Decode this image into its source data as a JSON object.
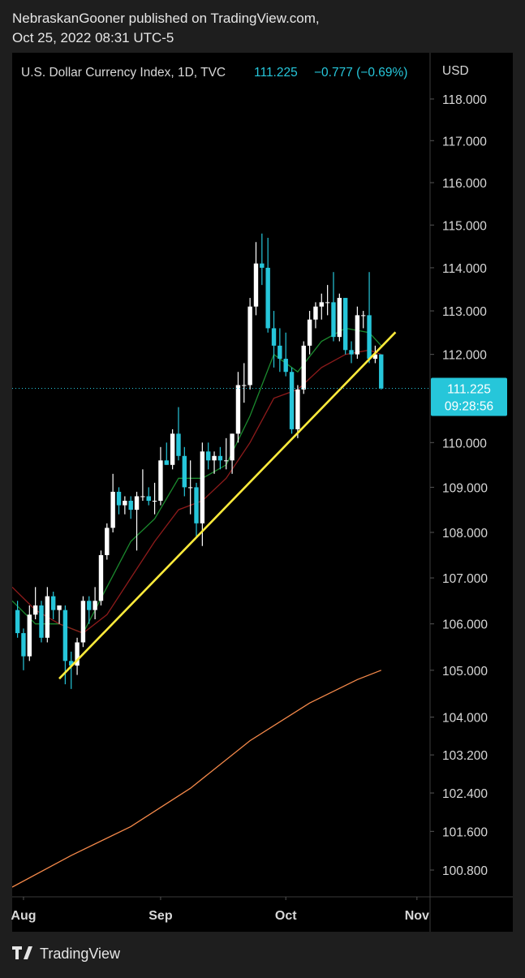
{
  "header": {
    "publisher": "NebraskanGooner published on TradingView.com,",
    "date": "Oct 25, 2022 08:31 UTC-5"
  },
  "chart_data": {
    "type": "candlestick",
    "title": "U.S. Dollar Currency Index, 1D, TVC",
    "last": 111.225,
    "change": "−0.777 (−0.69%)",
    "countdown": "09:28:56",
    "currency": "USD",
    "log": true,
    "up_color": "#ffffff",
    "down_color": "#26c6da",
    "x": [
      -1,
      0,
      1,
      2,
      3,
      4,
      5,
      6,
      7,
      8,
      9,
      10,
      11,
      12,
      13,
      14,
      15,
      16,
      17,
      18,
      19,
      20,
      21,
      22,
      23,
      24,
      25,
      26,
      27,
      28,
      29,
      30,
      31,
      32,
      33,
      34,
      35,
      36,
      37,
      38,
      39,
      40,
      41,
      42,
      43,
      44,
      45,
      46,
      47,
      48,
      49,
      50,
      51,
      52,
      53,
      54,
      55,
      56,
      57,
      58,
      59,
      60
    ],
    "open": [
      106.3,
      105.8,
      105.3,
      106.2,
      106.4,
      105.7,
      106.6,
      106.3,
      106.3,
      105.2,
      105.1,
      105.6,
      106.5,
      106.3,
      106.5,
      107.5,
      108.1,
      108.9,
      108.6,
      108.7,
      108.5,
      108.8,
      108.8,
      108.7,
      108.7,
      109.6,
      109.5,
      110.2,
      109.7,
      109.0,
      109.0,
      108.2,
      109.8,
      109.6,
      109.7,
      109.6,
      109.6,
      110.2,
      111.3,
      111.3,
      113.1,
      114.1,
      114.0,
      112.6,
      112.2,
      111.9,
      111.6,
      110.3,
      111.2,
      112.2,
      112.8,
      113.1,
      113.2,
      113.2,
      112.4,
      113.3,
      112.1,
      112.0,
      112.9,
      112.9,
      111.9,
      112.0
    ],
    "high": [
      106.5,
      105.9,
      106.4,
      106.8,
      106.5,
      106.8,
      106.7,
      106.4,
      106.4,
      105.4,
      105.7,
      106.6,
      106.6,
      106.8,
      107.6,
      108.2,
      109.3,
      109.0,
      108.8,
      108.8,
      108.9,
      109.4,
      109.0,
      109.1,
      109.9,
      110.0,
      110.3,
      110.8,
      109.9,
      109.6,
      109.1,
      110.0,
      110.0,
      109.8,
      109.9,
      110.1,
      110.2,
      111.6,
      111.8,
      113.3,
      114.6,
      114.8,
      114.7,
      113.0,
      112.6,
      112.5,
      111.7,
      111.3,
      112.3,
      113.0,
      113.2,
      113.4,
      113.6,
      113.9,
      113.4,
      113.3,
      112.3,
      113.1,
      113.0,
      113.9,
      112.2,
      112.0
    ],
    "low": [
      105.7,
      105.0,
      105.2,
      106.1,
      105.6,
      105.6,
      106.1,
      106.0,
      104.7,
      104.6,
      104.9,
      105.5,
      106.0,
      106.1,
      106.4,
      107.4,
      108.0,
      108.4,
      108.4,
      108.3,
      107.6,
      108.7,
      108.6,
      108.4,
      108.6,
      109.5,
      109.4,
      109.6,
      108.8,
      108.4,
      107.9,
      107.7,
      109.4,
      109.3,
      109.4,
      109.4,
      109.3,
      110.0,
      110.9,
      111.2,
      112.9,
      113.6,
      112.5,
      111.7,
      111.6,
      111.5,
      110.2,
      110.1,
      111.1,
      112.0,
      112.6,
      112.8,
      112.9,
      112.3,
      112.3,
      112.0,
      111.8,
      111.9,
      112.6,
      111.8,
      111.8,
      111.2
    ],
    "close": [
      105.8,
      105.3,
      106.2,
      106.4,
      105.7,
      106.6,
      106.3,
      106.4,
      105.2,
      105.1,
      105.6,
      106.5,
      106.3,
      106.5,
      107.5,
      108.1,
      108.9,
      108.6,
      108.7,
      108.5,
      108.8,
      108.8,
      108.7,
      108.7,
      109.6,
      109.5,
      110.2,
      109.7,
      109.0,
      109.0,
      108.2,
      109.8,
      109.6,
      109.7,
      109.6,
      109.6,
      110.2,
      111.3,
      111.3,
      113.1,
      114.1,
      114.0,
      112.6,
      112.2,
      111.9,
      111.6,
      110.3,
      111.2,
      112.2,
      112.8,
      113.1,
      113.2,
      113.2,
      112.4,
      113.3,
      112.1,
      112.0,
      112.9,
      112.9,
      111.9,
      112.0,
      111.225
    ],
    "lines": [
      {
        "color": "#1b8a2e",
        "x": [
          -1.9,
          2,
          6,
          10,
          14,
          18,
          22,
          26,
          30,
          34,
          38,
          42,
          46,
          50,
          54,
          58,
          60
        ],
        "values": [
          106.5,
          106.0,
          106.0,
          105.8,
          106.8,
          107.8,
          108.3,
          109.2,
          109.2,
          109.5,
          110.6,
          112.0,
          111.6,
          112.3,
          112.6,
          112.5,
          112.2
        ]
      },
      {
        "color": "#8e1b1b",
        "x": [
          -1.9,
          2,
          6,
          10,
          14,
          18,
          22,
          26,
          30,
          34,
          38,
          42,
          46,
          50,
          54,
          58,
          60
        ],
        "values": [
          106.8,
          106.3,
          106.0,
          105.8,
          106.2,
          107.0,
          107.8,
          108.5,
          108.7,
          109.2,
          110.0,
          111.0,
          111.2,
          111.7,
          112.0,
          112.1,
          112.0
        ]
      },
      {
        "color": "#f5894a",
        "x": [
          -1.9,
          8,
          18,
          28,
          38,
          48,
          56,
          60
        ],
        "values": [
          100.45,
          101.1,
          101.7,
          102.5,
          103.5,
          104.3,
          104.8,
          105.0
        ]
      }
    ],
    "trendline": {
      "color": "#ffeb3b",
      "x": [
        6.0,
        62.4
      ],
      "values": [
        104.82,
        112.51
      ]
    },
    "xlim": [
      -1.9,
      68.2
    ],
    "ylim": [
      100.25,
      119.12
    ],
    "xticks": [
      {
        "value": 0,
        "label": "Aug"
      },
      {
        "value": 23,
        "label": "Sep"
      },
      {
        "value": 44,
        "label": "Oct"
      },
      {
        "value": 66,
        "label": "Nov"
      }
    ],
    "yticks": [
      {
        "value": 118,
        "label": "118.000"
      },
      {
        "value": 117,
        "label": "117.000"
      },
      {
        "value": 116,
        "label": "116.000"
      },
      {
        "value": 115,
        "label": "115.000"
      },
      {
        "value": 114,
        "label": "114.000"
      },
      {
        "value": 113,
        "label": "113.000"
      },
      {
        "value": 112,
        "label": "112.000"
      },
      {
        "value": 110,
        "label": "110.000"
      },
      {
        "value": 109,
        "label": "109.000"
      },
      {
        "value": 108,
        "label": "108.000"
      },
      {
        "value": 107,
        "label": "107.000"
      },
      {
        "value": 106,
        "label": "106.000"
      },
      {
        "value": 105,
        "label": "105.000"
      },
      {
        "value": 104,
        "label": "104.000"
      },
      {
        "value": 103.2,
        "label": "103.200"
      },
      {
        "value": 102.4,
        "label": "102.400"
      },
      {
        "value": 101.6,
        "label": "101.600"
      },
      {
        "value": 100.8,
        "label": "100.800"
      }
    ]
  },
  "footer": {
    "brand": "TradingView"
  }
}
